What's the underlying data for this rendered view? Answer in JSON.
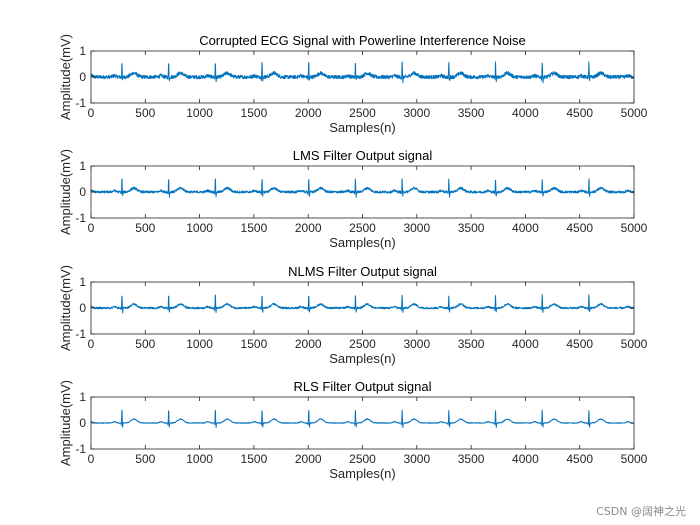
{
  "chart_data": [
    {
      "type": "line",
      "title": "Corrupted ECG Signal with Powerline Interference Noise",
      "xlabel": "Samples(n)",
      "ylabel": "Amplitude(mV)",
      "xlim": [
        0,
        5000
      ],
      "ylim": [
        -1,
        1
      ],
      "xticks": [
        0,
        500,
        1000,
        1500,
        2000,
        2500,
        3000,
        3500,
        4000,
        4500,
        5000
      ],
      "yticks": [
        -1,
        0,
        1
      ],
      "series": [
        {
          "name": "corrupted",
          "color": "#0072BD",
          "noise_amplitude_mv": 0.07,
          "beat_spacing_samples": 430,
          "first_r_peak_sample": 285,
          "r_peak_mv": 0.62,
          "t_wave_mv": 0.15
        }
      ]
    },
    {
      "type": "line",
      "title": "LMS Filter Output signal",
      "xlabel": "Samples(n)",
      "ylabel": "Amplitude(mV)",
      "xlim": [
        0,
        5000
      ],
      "ylim": [
        -1,
        1
      ],
      "xticks": [
        0,
        500,
        1000,
        1500,
        2000,
        2500,
        3000,
        3500,
        4000,
        4500,
        5000
      ],
      "yticks": [
        -1,
        0,
        1
      ],
      "series": [
        {
          "name": "lms_output",
          "color": "#0072BD",
          "noise_amplitude_mv": 0.045,
          "beat_spacing_samples": 430,
          "first_r_peak_sample": 285,
          "r_peak_mv": 0.55,
          "t_wave_mv": 0.15
        }
      ]
    },
    {
      "type": "line",
      "title": "NLMS Filter Output signal",
      "xlabel": "Samples(n)",
      "ylabel": "Amplitude(mV)",
      "xlim": [
        0,
        5000
      ],
      "ylim": [
        -1,
        1
      ],
      "xticks": [
        0,
        500,
        1000,
        1500,
        2000,
        2500,
        3000,
        3500,
        4000,
        4500,
        5000
      ],
      "yticks": [
        -1,
        0,
        1
      ],
      "series": [
        {
          "name": "nlms_output",
          "color": "#0072BD",
          "noise_amplitude_mv": 0.035,
          "beat_spacing_samples": 430,
          "first_r_peak_sample": 285,
          "r_peak_mv": 0.55,
          "t_wave_mv": 0.15
        }
      ]
    },
    {
      "type": "line",
      "title": "RLS Filter Output signal",
      "xlabel": "Samples(n)",
      "ylabel": "Amplitude(mV)",
      "xlim": [
        0,
        5000
      ],
      "ylim": [
        -1,
        1
      ],
      "xticks": [
        0,
        500,
        1000,
        1500,
        2000,
        2500,
        3000,
        3500,
        4000,
        4500,
        5000
      ],
      "yticks": [
        -1,
        0,
        1
      ],
      "series": [
        {
          "name": "rls_output",
          "color": "#0072BD",
          "noise_amplitude_mv": 0.015,
          "beat_spacing_samples": 430,
          "first_r_peak_sample": 285,
          "r_peak_mv": 0.55,
          "t_wave_mv": 0.15
        }
      ]
    }
  ],
  "watermark": "CSDN @阔神之光"
}
